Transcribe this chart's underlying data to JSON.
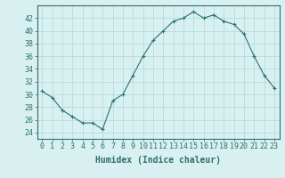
{
  "x": [
    0,
    1,
    2,
    3,
    4,
    5,
    6,
    7,
    8,
    9,
    10,
    11,
    12,
    13,
    14,
    15,
    16,
    17,
    18,
    19,
    20,
    21,
    22,
    23
  ],
  "y": [
    30.5,
    29.5,
    27.5,
    26.5,
    25.5,
    25.5,
    24.5,
    29.0,
    30.0,
    33.0,
    36.0,
    38.5,
    40.0,
    41.5,
    42.0,
    43.0,
    42.0,
    42.5,
    41.5,
    41.0,
    39.5,
    36.0,
    33.0,
    31.0
  ],
  "line_color": "#2d7070",
  "marker": "+",
  "marker_size": 3,
  "bg_color": "#d8f0f0",
  "grid_color": "#b0d8d8",
  "xlabel": "Humidex (Indice chaleur)",
  "ylim": [
    23,
    44
  ],
  "xlim": [
    -0.5,
    23.5
  ],
  "yticks": [
    24,
    26,
    28,
    30,
    32,
    34,
    36,
    38,
    40,
    42
  ],
  "xticks": [
    0,
    1,
    2,
    3,
    4,
    5,
    6,
    7,
    8,
    9,
    10,
    11,
    12,
    13,
    14,
    15,
    16,
    17,
    18,
    19,
    20,
    21,
    22,
    23
  ],
  "tick_label_fontsize": 6,
  "xlabel_fontsize": 7,
  "spine_color": "#2d7070",
  "tick_color": "#2d7070"
}
